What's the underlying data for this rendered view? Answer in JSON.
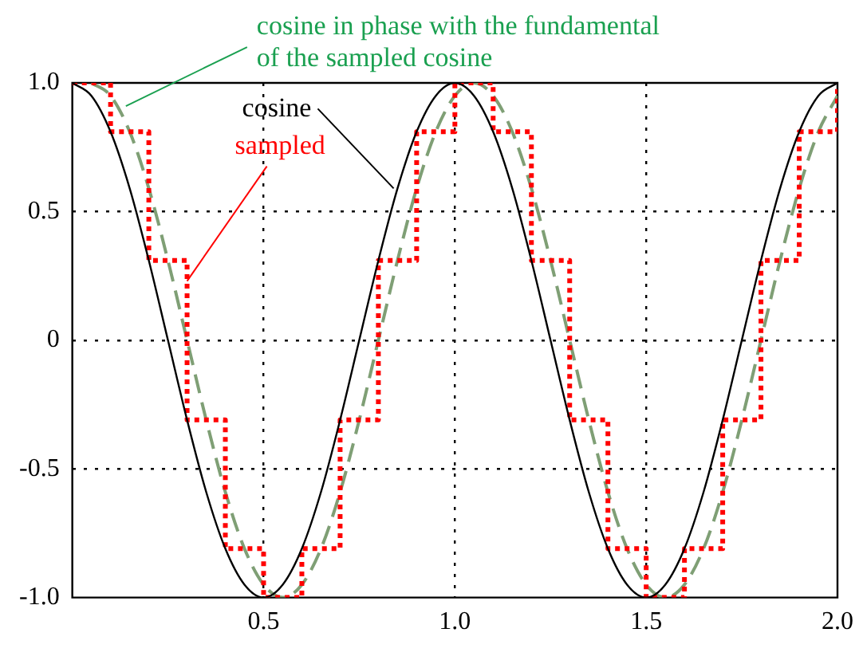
{
  "chart_data": {
    "type": "line",
    "xlim": [
      0,
      2
    ],
    "ylim": [
      -1,
      1
    ],
    "xticks": [
      {
        "value": 0,
        "label": null
      },
      0.5,
      {
        "value": 1,
        "label": "1.0"
      },
      1.5,
      {
        "value": 2,
        "label": "2.0"
      }
    ],
    "yticks": [
      {
        "value": -1,
        "label": "-1.0"
      },
      -0.5,
      0,
      0.5,
      {
        "value": 1,
        "label": "1.0"
      }
    ],
    "grid": true,
    "legend": false,
    "marker": "none",
    "series": [
      {
        "type": "line",
        "color": "#000000",
        "line_style": "solid",
        "x": [
          0,
          0.05,
          0.1,
          0.15,
          0.2,
          0.25,
          0.3,
          0.35,
          0.4,
          0.45,
          0.5,
          0.55,
          0.6,
          0.65,
          0.7,
          0.75,
          0.8,
          0.85,
          0.9,
          0.95,
          1,
          1.05,
          1.1,
          1.15,
          1.2,
          1.25,
          1.3,
          1.35,
          1.4,
          1.45,
          1.5,
          1.55,
          1.6,
          1.65,
          1.7,
          1.75,
          1.8,
          1.85,
          1.9,
          1.95,
          2
        ],
        "values": [
          1,
          0.95,
          0.81,
          0.59,
          0.31,
          0,
          -0.31,
          -0.59,
          -0.81,
          -0.95,
          -1,
          -0.95,
          -0.81,
          -0.59,
          -0.31,
          0,
          0.31,
          0.59,
          0.81,
          0.95,
          1,
          0.95,
          0.81,
          0.59,
          0.31,
          0,
          -0.31,
          -0.59,
          -0.81,
          -0.95,
          -1,
          -0.95,
          -0.81,
          -0.59,
          -0.31,
          0,
          0.31,
          0.59,
          0.81,
          0.95,
          1
        ]
      },
      {
        "type": "step",
        "color": "#ff0000",
        "line_style": "dotted",
        "x": [
          0,
          0.1,
          0.2,
          0.3,
          0.4,
          0.5,
          0.6,
          0.7,
          0.8,
          0.9,
          1,
          1.1,
          1.2,
          1.3,
          1.4,
          1.5,
          1.6,
          1.7,
          1.8,
          1.9,
          2
        ],
        "values": [
          1,
          0.81,
          0.31,
          -0.31,
          -0.81,
          -1,
          -0.81,
          -0.31,
          0.31,
          0.81,
          1,
          0.81,
          0.31,
          -0.31,
          -0.81,
          -1,
          -0.81,
          -0.31,
          0.31,
          0.81,
          1
        ]
      },
      {
        "type": "line",
        "color": "#7f9f75",
        "line_style": "dashed",
        "x": [
          0.05,
          0.1,
          0.15,
          0.2,
          0.25,
          0.3,
          0.35,
          0.4,
          0.45,
          0.5,
          0.55,
          0.6,
          0.65,
          0.7,
          0.75,
          0.8,
          0.85,
          0.9,
          0.95,
          1,
          1.05,
          1.1,
          1.15,
          1.2,
          1.25,
          1.3,
          1.35,
          1.4,
          1.45,
          1.5,
          1.55,
          1.6,
          1.65,
          1.7,
          1.75,
          1.8,
          1.85,
          1.9,
          1.95,
          2
        ],
        "values": [
          1,
          0.95,
          0.81,
          0.59,
          0.31,
          0,
          -0.31,
          -0.59,
          -0.81,
          -0.95,
          -1,
          -0.95,
          -0.81,
          -0.59,
          -0.31,
          0,
          0.31,
          0.59,
          0.81,
          0.95,
          1,
          0.95,
          0.81,
          0.59,
          0.31,
          0,
          -0.31,
          -0.59,
          -0.81,
          -0.95,
          -1,
          -0.95,
          -0.81,
          -0.59,
          -0.31,
          0,
          0.31,
          0.59,
          0.81,
          0.95
        ]
      }
    ],
    "annotations": [
      {
        "text": "cosine",
        "x": 0.84,
        "y": 0.59
      },
      {
        "text": "sampled",
        "x": 0.3,
        "y": 0.23
      },
      {
        "text": "cosine in phase with the fundamental\nof the sampled cosine",
        "x": 0.14,
        "y": 0.91
      }
    ]
  }
}
